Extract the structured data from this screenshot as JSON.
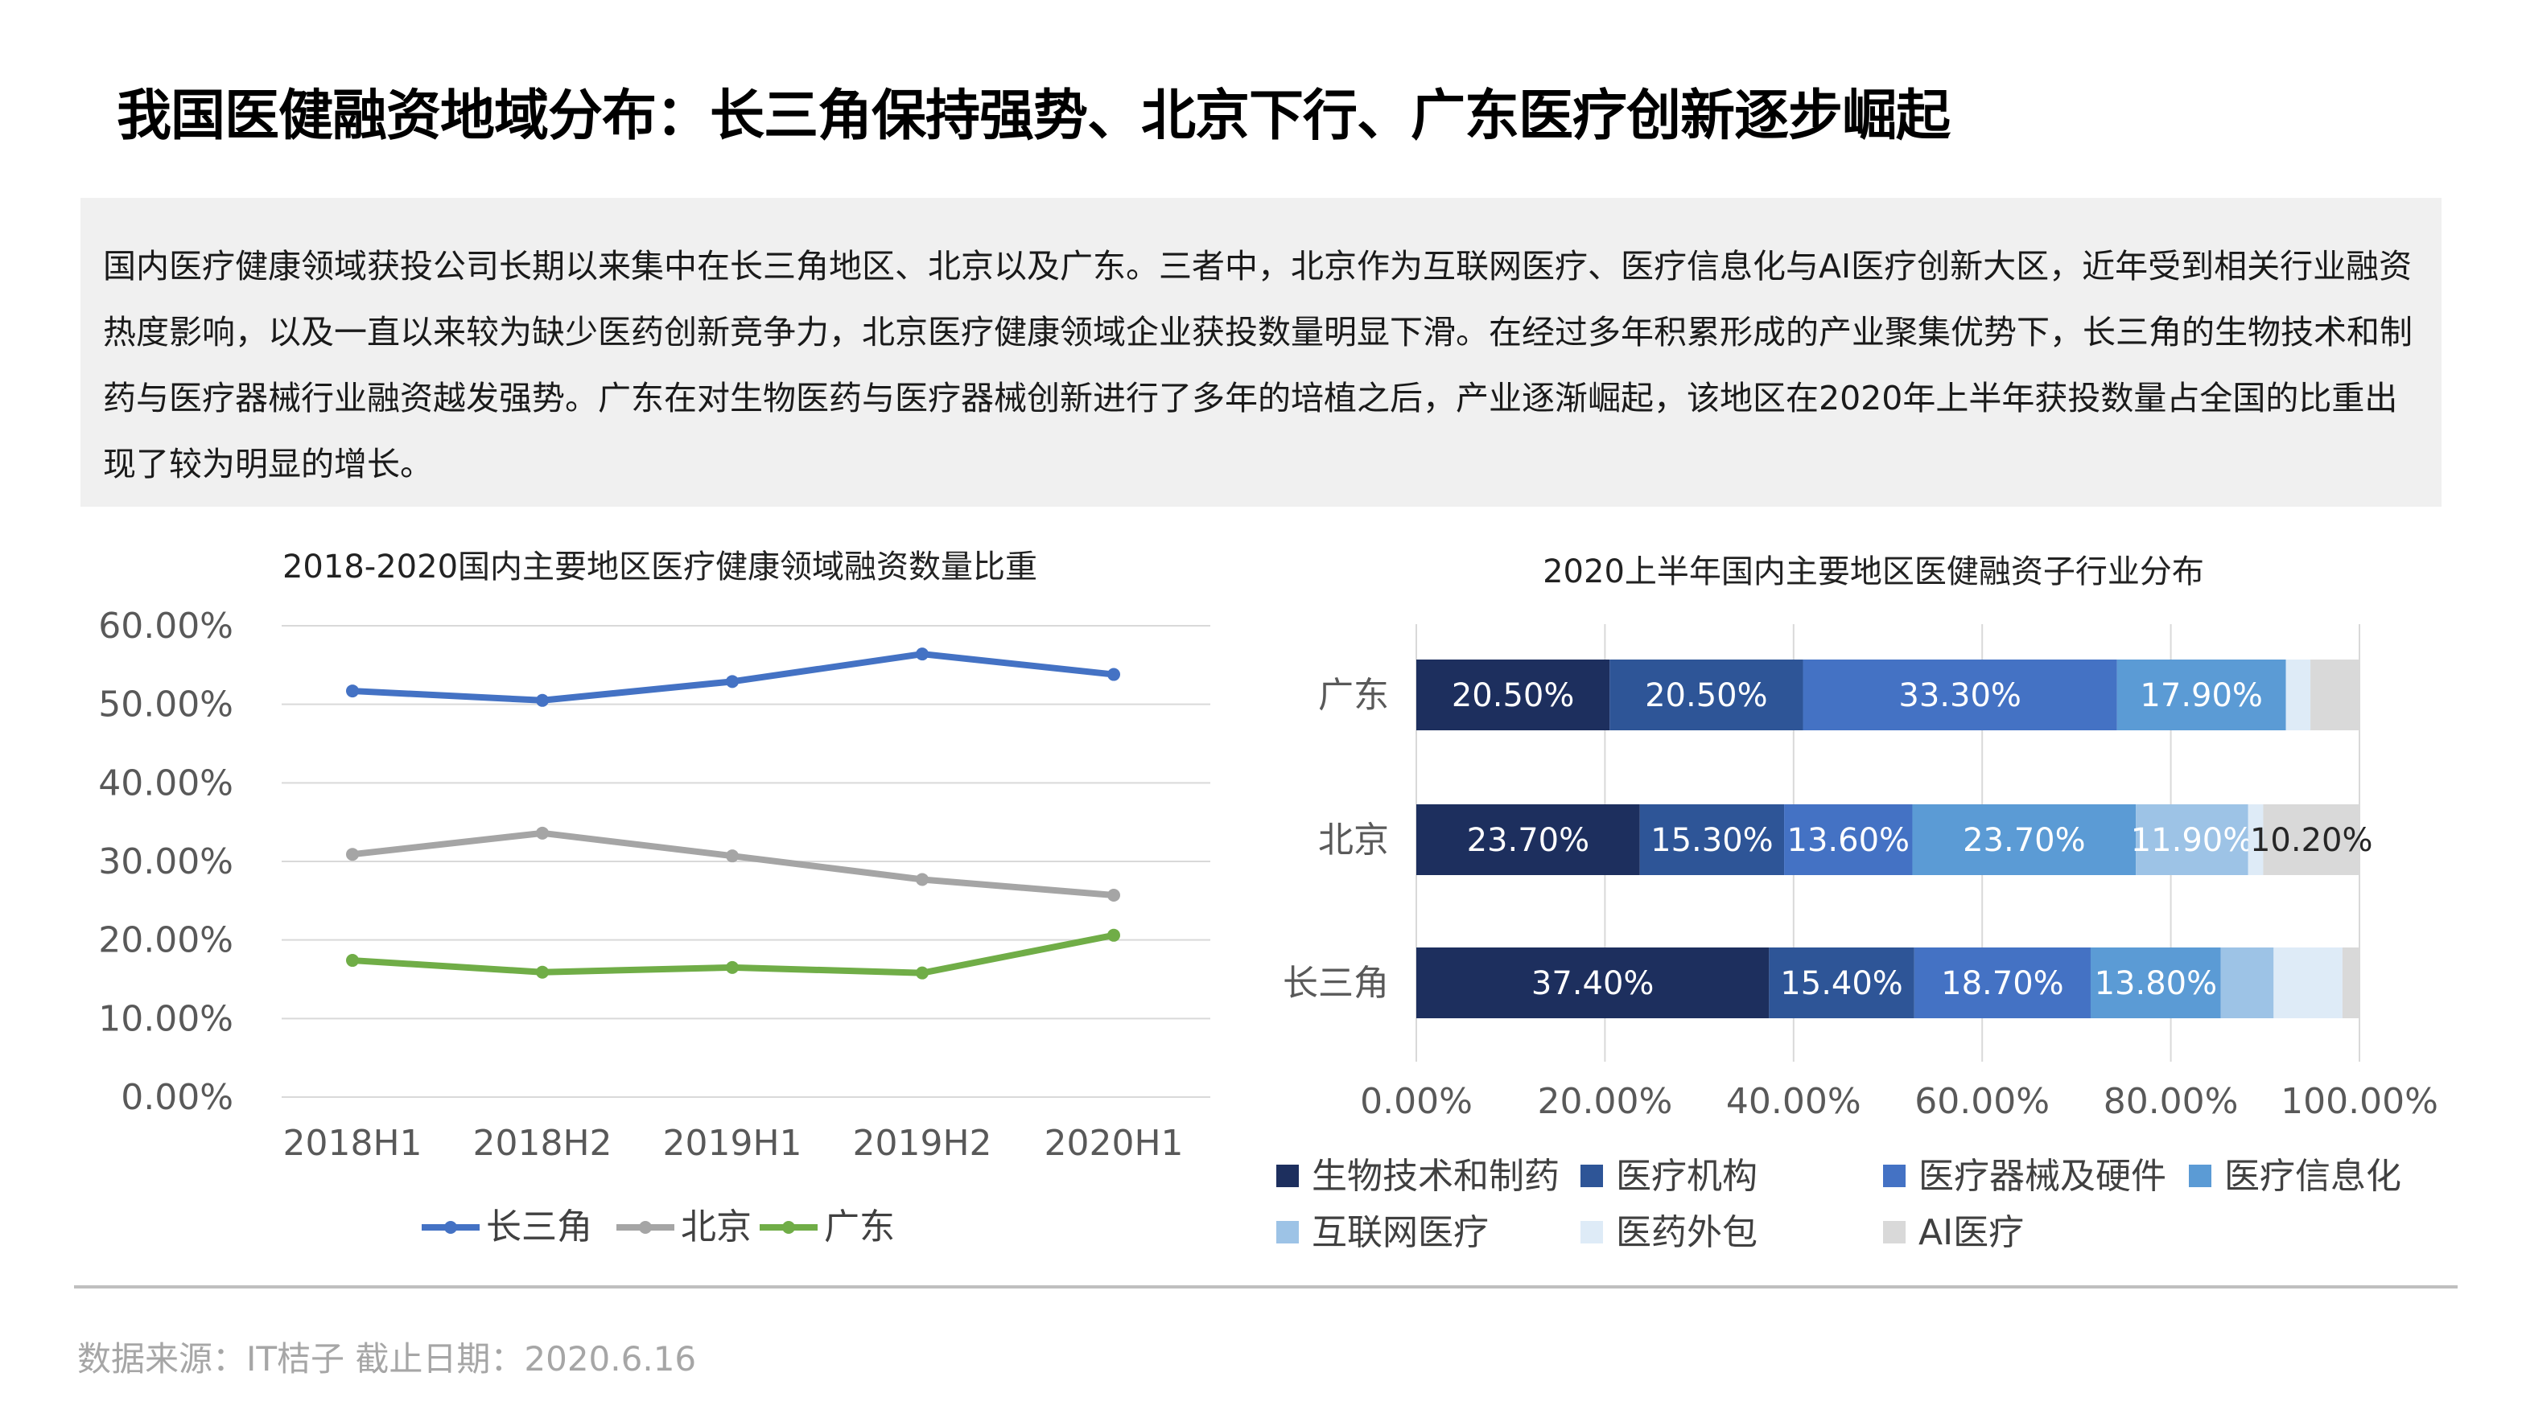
{
  "header": {
    "title": "我国医健融资地域分布：长三角保持强势、北京下行、广东医疗创新逐步崛起"
  },
  "summary": {
    "text": "国内医疗健康领域获投公司长期以来集中在长三角地区、北京以及广东。三者中，北京作为互联网医疗、医疗信息化与AI医疗创新大区，近年受到相关行业融资热度影响，以及一直以来较为缺少医药创新竞争力，北京医疗健康领域企业获投数量明显下滑。在经过多年积累形成的产业聚集优势下，长三角的生物技术和制药与医疗器械行业融资越发强势。广东在对生物医药与医疗器械创新进行了多年的培植之后，产业逐渐崛起，该地区在2020年上半年获投数量占全国的比重出现了较为明显的增长。"
  },
  "footer": {
    "source": "数据来源：IT桔子  截止日期：2020.6.16"
  },
  "chart_data": [
    {
      "type": "line",
      "title": "2018-2020国内主要地区医疗健康领域融资数量比重",
      "categories": [
        "2018H1",
        "2018H2",
        "2019H1",
        "2019H2",
        "2020H1"
      ],
      "ylim": [
        0,
        60
      ],
      "yticks": [
        "0.00%",
        "10.00%",
        "20.00%",
        "30.00%",
        "40.00%",
        "50.00%",
        "60.00%"
      ],
      "grid": true,
      "legend": "bottom",
      "series": [
        {
          "name": "长三角",
          "color": "#4472c4",
          "values": [
            51.7,
            50.5,
            52.9,
            56.4,
            53.8
          ]
        },
        {
          "name": "北京",
          "color": "#a5a5a5",
          "values": [
            30.9,
            33.6,
            30.7,
            27.7,
            25.7
          ]
        },
        {
          "name": "广东",
          "color": "#70ad47",
          "values": [
            17.4,
            15.9,
            16.5,
            15.8,
            20.6
          ]
        }
      ]
    },
    {
      "type": "bar",
      "orientation": "horizontal",
      "stacked": true,
      "title": "2020上半年国内主要地区医健融资子行业分布",
      "categories": [
        "广东",
        "北京",
        "长三角"
      ],
      "xlim": [
        0,
        100
      ],
      "xticks": [
        "0.00%",
        "20.00%",
        "40.00%",
        "60.00%",
        "80.00%",
        "100.00%"
      ],
      "grid": true,
      "legend": "bottom",
      "series": [
        {
          "name": "生物技术和制药",
          "color": "#1d2f5e",
          "values": [
            20.5,
            23.7,
            37.4
          ],
          "labels": [
            "20.50%",
            "23.70%",
            "37.40%"
          ]
        },
        {
          "name": "医疗机构",
          "color": "#2e5597",
          "values": [
            20.5,
            15.3,
            15.4
          ],
          "labels": [
            "20.50%",
            "15.30%",
            "15.40%"
          ]
        },
        {
          "name": "医疗器械及硬件",
          "color": "#4472c4",
          "values": [
            33.3,
            13.6,
            18.7
          ],
          "labels": [
            "33.30%",
            "13.60%",
            "18.70%"
          ]
        },
        {
          "name": "医疗信息化",
          "color": "#5b9bd5",
          "values": [
            17.9,
            23.7,
            13.8
          ],
          "labels": [
            "17.90%",
            "23.70%",
            "13.80%"
          ]
        },
        {
          "name": "互联网医疗",
          "color": "#9dc3e6",
          "values": [
            0,
            11.9,
            5.6
          ],
          "labels": [
            "",
            "11.90%",
            ""
          ]
        },
        {
          "name": "医药外包",
          "color": "#deebf7",
          "values": [
            2.6,
            1.6,
            7.3
          ],
          "labels": [
            "",
            "",
            ""
          ]
        },
        {
          "name": "AI医疗",
          "color": "#d9d9d9",
          "values": [
            5.2,
            10.2,
            1.8
          ],
          "labels": [
            "",
            "10.20%",
            ""
          ]
        }
      ]
    }
  ]
}
